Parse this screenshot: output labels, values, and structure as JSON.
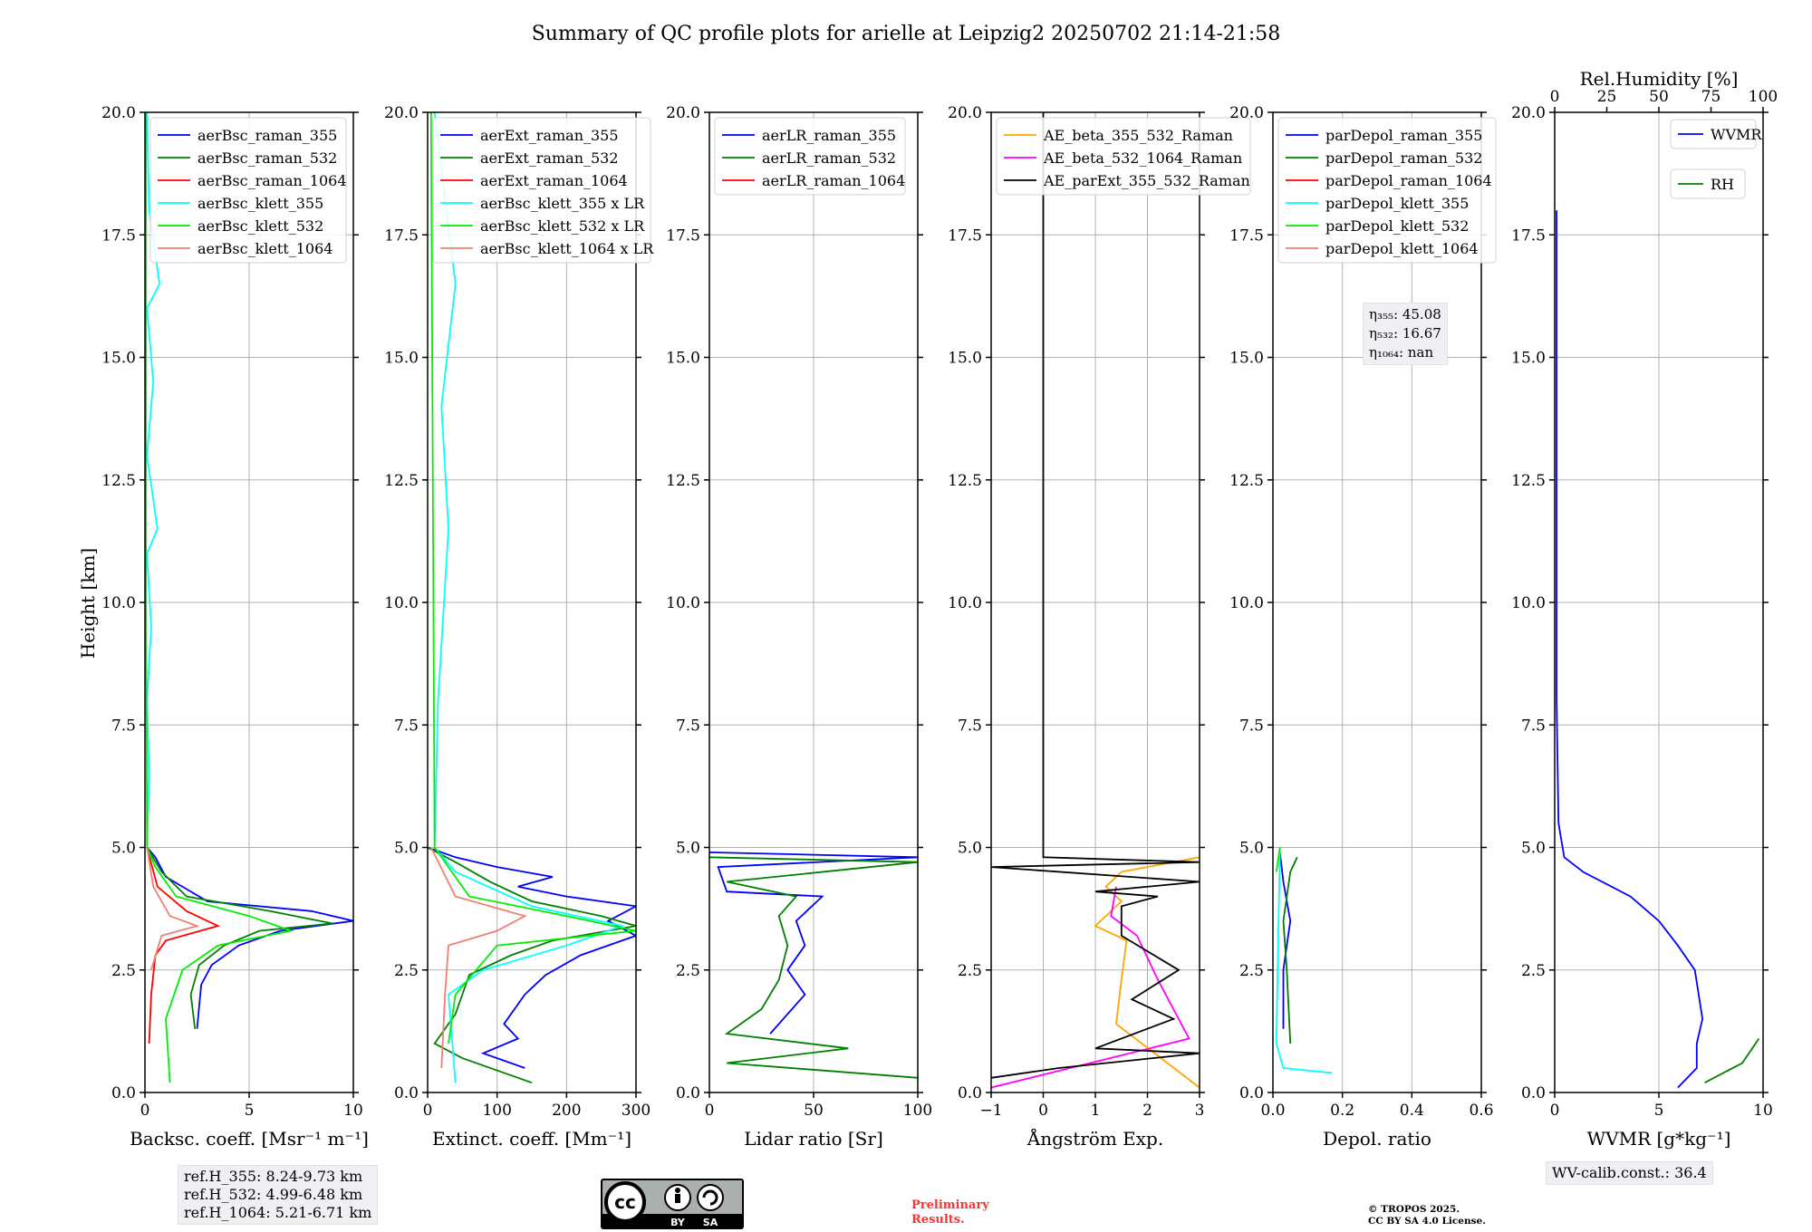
{
  "title": "Summary of QC profile plots for arielle at Leipzig2 20250702 21:14-21:58",
  "y_axis_label": "Height [km]",
  "y_ticks": [
    "0.0",
    "2.5",
    "5.0",
    "7.5",
    "10.0",
    "12.5",
    "15.0",
    "17.5",
    "20.0"
  ],
  "colors": {
    "blue": "#0000ff",
    "green": "#008000",
    "red": "#ff0000",
    "cyan": "#00ffff",
    "lime": "#00ee00",
    "salmon": "#f08070",
    "orange": "#ffa500",
    "magenta": "#ff00ff",
    "black": "#000000"
  },
  "chart_data": [
    {
      "type": "line",
      "xlabel": "Backsc. coeff. [Msr⁻¹ m⁻¹]",
      "xlim": [
        0,
        10
      ],
      "ylim": [
        0,
        20
      ],
      "xticks": [
        "0",
        "5",
        "10"
      ],
      "legend": "top-left",
      "series": [
        {
          "name": "aerBsc_raman_355",
          "color": "#0000ff",
          "points": [
            [
              2.5,
              1.3
            ],
            [
              2.7,
              2.2
            ],
            [
              3.2,
              2.6
            ],
            [
              4.5,
              3.0
            ],
            [
              6.5,
              3.3
            ],
            [
              10,
              3.5
            ],
            [
              8,
              3.7
            ],
            [
              3,
              3.9
            ],
            [
              1.0,
              4.4
            ],
            [
              0.5,
              4.8
            ],
            [
              0.1,
              5.0
            ]
          ]
        },
        {
          "name": "aerBsc_raman_532",
          "color": "#008000",
          "points": [
            [
              2.4,
              1.3
            ],
            [
              2.2,
              2.0
            ],
            [
              2.6,
              2.6
            ],
            [
              3.8,
              3.0
            ],
            [
              5.5,
              3.3
            ],
            [
              9,
              3.45
            ],
            [
              6,
              3.7
            ],
            [
              2,
              4.0
            ],
            [
              0.8,
              4.5
            ],
            [
              0.1,
              5.0
            ]
          ]
        },
        {
          "name": "aerBsc_raman_1064",
          "color": "#ff0000",
          "points": [
            [
              0.2,
              1.0
            ],
            [
              0.3,
              2.0
            ],
            [
              0.5,
              2.8
            ],
            [
              1.0,
              3.1
            ],
            [
              3.5,
              3.4
            ],
            [
              2.0,
              3.7
            ],
            [
              0.6,
              4.2
            ],
            [
              0.1,
              5.0
            ]
          ]
        },
        {
          "name": "aerBsc_klett_355",
          "color": "#00ffff",
          "points": [
            [
              0.1,
              5.0
            ],
            [
              0.2,
              6.5
            ],
            [
              0.1,
              8.0
            ],
            [
              0.3,
              9.5
            ],
            [
              0.1,
              11.0
            ],
            [
              0.6,
              11.5
            ],
            [
              0.1,
              13.0
            ],
            [
              0.4,
              14.5
            ],
            [
              0.1,
              16.0
            ],
            [
              0.7,
              16.5
            ],
            [
              0.2,
              18.0
            ],
            [
              0.1,
              20.0
            ]
          ]
        },
        {
          "name": "aerBsc_klett_532",
          "color": "#00ee00",
          "points": [
            [
              1.2,
              0.2
            ],
            [
              1.0,
              1.5
            ],
            [
              1.8,
              2.5
            ],
            [
              3.5,
              3.0
            ],
            [
              7,
              3.3
            ],
            [
              5,
              3.6
            ],
            [
              1.5,
              4.0
            ],
            [
              0.5,
              4.6
            ],
            [
              0.1,
              5.0
            ],
            [
              0.05,
              10
            ],
            [
              0.05,
              20
            ]
          ]
        },
        {
          "name": "aerBsc_klett_1064",
          "color": "#f08070",
          "points": [
            [
              0.3,
              2.5
            ],
            [
              0.8,
              3.2
            ],
            [
              2.5,
              3.4
            ],
            [
              1.2,
              3.6
            ],
            [
              0.4,
              4.2
            ],
            [
              0.1,
              5.0
            ]
          ]
        }
      ],
      "annotation": [
        "ref.H_355: 8.24-9.73 km",
        "ref.H_532: 4.99-6.48 km",
        "ref.H_1064: 5.21-6.71 km"
      ]
    },
    {
      "type": "line",
      "xlabel": "Extinct. coeff. [Mm⁻¹]",
      "xlim": [
        0,
        300
      ],
      "ylim": [
        0,
        20
      ],
      "xticks": [
        "0",
        "100",
        "200",
        "300"
      ],
      "legend": "top-left",
      "series": [
        {
          "name": "aerExt_raman_355",
          "color": "#0000ff",
          "points": [
            [
              140,
              0.5
            ],
            [
              80,
              0.8
            ],
            [
              130,
              1.1
            ],
            [
              110,
              1.4
            ],
            [
              140,
              2.0
            ],
            [
              170,
              2.4
            ],
            [
              220,
              2.8
            ],
            [
              300,
              3.2
            ],
            [
              260,
              3.5
            ],
            [
              300,
              3.8
            ],
            [
              200,
              4.0
            ],
            [
              130,
              4.2
            ],
            [
              180,
              4.4
            ],
            [
              100,
              4.6
            ],
            [
              40,
              4.8
            ],
            [
              0,
              5.0
            ]
          ]
        },
        {
          "name": "aerExt_raman_532",
          "color": "#008000",
          "points": [
            [
              150,
              0.2
            ],
            [
              50,
              0.7
            ],
            [
              10,
              1.0
            ],
            [
              40,
              1.6
            ],
            [
              60,
              2.4
            ],
            [
              120,
              2.8
            ],
            [
              180,
              3.1
            ],
            [
              300,
              3.4
            ],
            [
              250,
              3.6
            ],
            [
              150,
              3.9
            ],
            [
              90,
              4.3
            ],
            [
              40,
              4.7
            ],
            [
              0,
              5.0
            ]
          ]
        },
        {
          "name": "aerExt_raman_1064",
          "color": "#ff0000",
          "points": [
            [
              0,
              5.0
            ],
            [
              0,
              5.0
            ]
          ]
        },
        {
          "name": "aerBsc_klett_355 x LR",
          "color": "#00ffff",
          "points": [
            [
              40,
              0.2
            ],
            [
              30,
              2.0
            ],
            [
              80,
              2.5
            ],
            [
              200,
              3.0
            ],
            [
              280,
              3.4
            ],
            [
              150,
              3.8
            ],
            [
              40,
              4.5
            ],
            [
              10,
              5.0
            ],
            [
              15,
              8
            ],
            [
              30,
              11.5
            ],
            [
              20,
              14
            ],
            [
              40,
              16.5
            ],
            [
              10,
              20
            ]
          ]
        },
        {
          "name": "aerBsc_klett_532 x LR",
          "color": "#00ee00",
          "points": [
            [
              30,
              1.0
            ],
            [
              40,
              2.0
            ],
            [
              100,
              3.0
            ],
            [
              300,
              3.3
            ],
            [
              200,
              3.6
            ],
            [
              60,
              4.0
            ],
            [
              10,
              5.0
            ],
            [
              5,
              20
            ]
          ]
        },
        {
          "name": "aerBsc_klett_1064 x LR",
          "color": "#f08070",
          "points": [
            [
              20,
              0.5
            ],
            [
              25,
              2.0
            ],
            [
              30,
              3.0
            ],
            [
              100,
              3.3
            ],
            [
              140,
              3.6
            ],
            [
              40,
              4.0
            ],
            [
              5,
              5.0
            ]
          ]
        }
      ]
    },
    {
      "type": "line",
      "xlabel": "Lidar ratio [Sr]",
      "xlim": [
        0,
        120
      ],
      "ylim": [
        0,
        20
      ],
      "xticks": [
        "0",
        "50",
        "100"
      ],
      "legend": "top-left",
      "series": [
        {
          "name": "aerLR_raman_355",
          "color": "#0000ff",
          "points": [
            [
              35,
              1.2
            ],
            [
              55,
              2.0
            ],
            [
              45,
              2.5
            ],
            [
              55,
              3.0
            ],
            [
              50,
              3.5
            ],
            [
              65,
              4.0
            ],
            [
              10,
              4.1
            ],
            [
              5,
              4.6
            ],
            [
              120,
              4.8
            ],
            [
              0,
              4.9
            ]
          ]
        },
        {
          "name": "aerLR_raman_532",
          "color": "#008000",
          "points": [
            [
              120,
              0.3
            ],
            [
              10,
              0.6
            ],
            [
              80,
              0.9
            ],
            [
              10,
              1.2
            ],
            [
              30,
              1.7
            ],
            [
              40,
              2.3
            ],
            [
              45,
              3.0
            ],
            [
              40,
              3.6
            ],
            [
              50,
              4.0
            ],
            [
              10,
              4.3
            ],
            [
              120,
              4.7
            ],
            [
              0,
              4.8
            ]
          ]
        },
        {
          "name": "aerLR_raman_1064",
          "color": "#ff0000",
          "points": []
        }
      ]
    },
    {
      "type": "line",
      "xlabel": "Ångström Exp.",
      "xlim": [
        -1,
        3
      ],
      "ylim": [
        0,
        20
      ],
      "xticks": [
        "−1",
        "0",
        "1",
        "2",
        "3"
      ],
      "legend": "top-left",
      "series": [
        {
          "name": "AE_beta_355_532_Raman",
          "color": "#ffa500",
          "points": [
            [
              3,
              0.1
            ],
            [
              1.4,
              1.4
            ],
            [
              1.5,
              2.3
            ],
            [
              1.6,
              3.1
            ],
            [
              1.0,
              3.4
            ],
            [
              1.5,
              3.9
            ],
            [
              1.2,
              4.2
            ],
            [
              1.5,
              4.5
            ],
            [
              3,
              4.8
            ]
          ]
        },
        {
          "name": "AE_beta_532_1064_Raman",
          "color": "#ff00ff",
          "points": [
            [
              -1,
              0.1
            ],
            [
              2.8,
              1.1
            ],
            [
              2.2,
              2.3
            ],
            [
              1.8,
              3.2
            ],
            [
              1.3,
              3.6
            ],
            [
              1.4,
              4.2
            ]
          ]
        },
        {
          "name": "AE_parExt_355_532_Raman",
          "color": "#000000",
          "points": [
            [
              -1,
              0.3
            ],
            [
              0.3,
              0.5
            ],
            [
              3,
              0.8
            ],
            [
              1,
              0.9
            ],
            [
              2.5,
              1.5
            ],
            [
              1.7,
              1.9
            ],
            [
              2.6,
              2.5
            ],
            [
              1.5,
              3.2
            ],
            [
              1.5,
              3.8
            ],
            [
              2.2,
              4.0
            ],
            [
              1.0,
              4.1
            ],
            [
              3,
              4.3
            ],
            [
              -1,
              4.6
            ],
            [
              3,
              4.7
            ],
            [
              0,
              4.8
            ],
            [
              0,
              20
            ]
          ]
        }
      ]
    },
    {
      "type": "line",
      "xlabel": "Depol. ratio",
      "xlim": [
        0,
        0.6
      ],
      "ylim": [
        0,
        20
      ],
      "xticks": [
        "0.0",
        "0.2",
        "0.4",
        "0.6"
      ],
      "legend": "top-left",
      "series": [
        {
          "name": "parDepol_raman_355",
          "color": "#0000ff",
          "points": [
            [
              0.03,
              1.3
            ],
            [
              0.03,
              2.5
            ],
            [
              0.04,
              3.0
            ],
            [
              0.05,
              3.5
            ],
            [
              0.03,
              4.3
            ],
            [
              0.02,
              4.9
            ]
          ]
        },
        {
          "name": "parDepol_raman_532",
          "color": "#008000",
          "points": [
            [
              0.05,
              1.0
            ],
            [
              0.04,
              2.5
            ],
            [
              0.03,
              3.5
            ],
            [
              0.05,
              4.5
            ],
            [
              0.07,
              4.8
            ]
          ]
        },
        {
          "name": "parDepol_raman_1064",
          "color": "#ff0000",
          "points": []
        },
        {
          "name": "parDepol_klett_355",
          "color": "#00ffff",
          "points": [
            [
              0.17,
              0.4
            ],
            [
              0.03,
              0.5
            ],
            [
              0.01,
              1.0
            ],
            [
              0.02,
              5.0
            ]
          ]
        },
        {
          "name": "parDepol_klett_532",
          "color": "#00ee00",
          "points": [
            [
              0.01,
              4.5
            ],
            [
              0.02,
              5.0
            ]
          ]
        },
        {
          "name": "parDepol_klett_1064",
          "color": "#f08070",
          "points": []
        }
      ],
      "annotation": [
        "η₃₅₅: 45.08",
        "η₅₃₂: 16.67",
        "η₁₀₆₄: nan"
      ]
    },
    {
      "type": "line",
      "xlabel": "WVMR [g*kg⁻¹]",
      "xlim": [
        0,
        11
      ],
      "ylim": [
        0,
        20
      ],
      "xticks": [
        "0",
        "5",
        "10"
      ],
      "top_xlabel": "Rel.Humidity [%]",
      "top_xlim": [
        0,
        100
      ],
      "top_xticks": [
        "0",
        "25",
        "50",
        "75",
        "100"
      ],
      "legend": "top-right",
      "series": [
        {
          "name": "WVMR",
          "color": "#0000ff",
          "points": [
            [
              6.5,
              0.1
            ],
            [
              7.5,
              0.5
            ],
            [
              7.5,
              1.0
            ],
            [
              7.8,
              1.5
            ],
            [
              7.6,
              2.0
            ],
            [
              7.4,
              2.5
            ],
            [
              6.5,
              3.0
            ],
            [
              5.5,
              3.5
            ],
            [
              4.0,
              4.0
            ],
            [
              1.5,
              4.5
            ],
            [
              0.5,
              4.8
            ],
            [
              0.2,
              5.5
            ],
            [
              0.1,
              8
            ],
            [
              0.1,
              12
            ],
            [
              0.1,
              16
            ],
            [
              0.1,
              18
            ]
          ]
        },
        {
          "name": "RH",
          "color": "#008000",
          "points": [
            [
              72,
              0.2
            ],
            [
              90,
              0.6
            ],
            [
              98,
              1.1
            ]
          ]
        }
      ],
      "annotation": "WV-calib.const.: 36.4"
    }
  ],
  "footer": {
    "license_badge": {
      "left": "cc",
      "right_labels": [
        "BY",
        "SA"
      ]
    },
    "preliminary": [
      "Preliminary",
      "Results."
    ],
    "copyright": [
      "© TROPOS 2025.",
      "CC BY SA 4.0 License."
    ]
  }
}
